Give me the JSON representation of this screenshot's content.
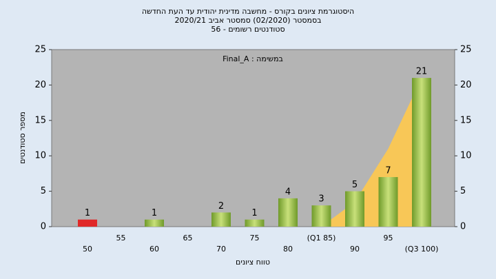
{
  "chart_data": {
    "type": "bar",
    "title": "היסטוגרמת ציונים בקורס - מחשבה מדינית יהודית עד העת החדשה",
    "subtitle": "בסמסטר (02/2020) סמסטר אביב 2020/21",
    "subtitle2": "סטודנטים רשומים - 56",
    "annotation": "במשימה : Final_A",
    "x_label": "טווח ציונים",
    "y_label": "מספר סטודנטים",
    "categories": [
      "50",
      "55",
      "60",
      "65",
      "70",
      "75",
      "80",
      "(Q1 85)",
      "90",
      "95",
      "(Q3 100)"
    ],
    "values": [
      1,
      null,
      1,
      null,
      2,
      1,
      4,
      3,
      5,
      7,
      21
    ],
    "colors": [
      "#e02828",
      null,
      "#9cc04a",
      null,
      "#9cc04a",
      "#9cc04a",
      "#9cc04a",
      "#9cc04a",
      "#9cc04a",
      "#9cc04a",
      "#9cc04a"
    ],
    "area_values": [
      null,
      null,
      null,
      null,
      null,
      null,
      null,
      0,
      3.5,
      11,
      21
    ],
    "area_color": "#ffc94d",
    "ylim": [
      0,
      25
    ],
    "yticks": [
      0,
      5,
      10,
      15,
      20,
      25
    ],
    "y2lim": [
      0,
      25
    ],
    "y2ticks": [
      0,
      5,
      10,
      15,
      20,
      25
    ]
  }
}
